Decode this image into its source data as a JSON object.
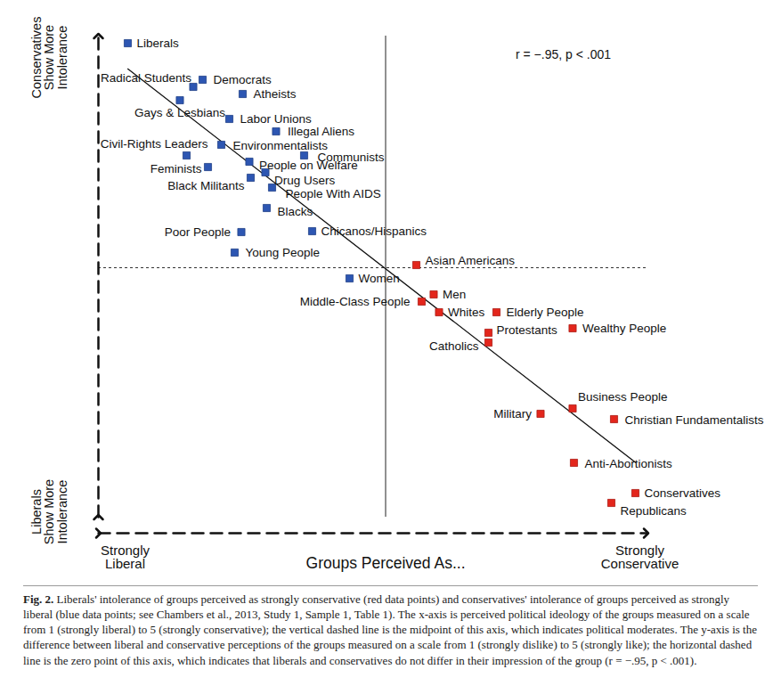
{
  "chart_data": {
    "type": "scatter",
    "x_label": "Groups Perceived As...",
    "x_label_left": "Strongly Liberal",
    "x_label_right": "Strongly Conservative",
    "y_label_top": "Conservatives Show More Intolerance",
    "y_label_bottom": "Liberals Show More Intolerance",
    "annotation": "r = −.95, p < .001",
    "caption_label": "Fig. 2.",
    "caption": "Liberals' intolerance of groups perceived as strongly conservative (red data points) and conservatives' intolerance of groups perceived as strongly liberal (blue data points; see Chambers et al., 2013, Study 1, Sample 1, Table 1). The x-axis is perceived political ideology of the groups measured on a scale from 1 (strongly liberal) to 5 (strongly conservative); the vertical dashed line is the midpoint of this axis, which indicates political moderates. The y-axis is the difference between liberal and conservative perceptions of the groups measured on a scale from 1 (strongly dislike) to 5 (strongly like); the horizontal dashed line is the zero point of this axis, which indicates that liberals and conservatives do not differ in their impression of the group (r = −.95, p < .001).",
    "xlim": [
      0.85,
      4.95
    ],
    "ylim": [
      -2.8,
      2.6
    ],
    "tick_labels": false,
    "grid": false,
    "vline": 3,
    "hline": 0,
    "marker": "square",
    "series": [
      {
        "color": "#2d56b2",
        "labels": [
          "Liberals",
          "Radical Students",
          "Democrats",
          "Atheists",
          "Gays & Lesbians",
          "Labor Unions",
          "Illegal Aliens",
          "Civil-Rights Leaders",
          "Environmentalists",
          "Communists",
          "People on Welfare",
          "Feminists",
          "Drug Users",
          "Black Militants",
          "People With AIDS",
          "Blacks",
          "Poor People",
          "Chicanos/Hispanics",
          "Young People",
          "Women"
        ],
        "x": [
          1.07,
          1.56,
          1.63,
          1.93,
          1.46,
          1.83,
          2.18,
          1.51,
          1.77,
          2.39,
          1.98,
          1.67,
          2.1,
          1.99,
          2.15,
          2.11,
          1.92,
          2.45,
          1.87,
          2.73
        ],
        "values": [
          2.52,
          2.03,
          2.11,
          1.95,
          1.88,
          1.67,
          1.53,
          1.26,
          1.38,
          1.26,
          1.19,
          1.13,
          1.07,
          1.01,
          0.9,
          0.67,
          0.4,
          0.41,
          0.17,
          -0.12
        ]
      },
      {
        "color": "#e3261c",
        "labels": [
          "Asian Americans",
          "Men",
          "Middle-Class People",
          "Whites",
          "Elderly People",
          "Protestants",
          "Wealthy People",
          "Catholics",
          "Business People",
          "Military",
          "Christian Fundamentalists",
          "Anti-Abortionists",
          "Conservatives",
          "Republicans"
        ],
        "x": [
          3.23,
          3.36,
          3.27,
          3.4,
          3.83,
          3.77,
          4.4,
          3.77,
          4.4,
          4.16,
          4.71,
          4.41,
          4.87,
          4.69
        ],
        "values": [
          0.03,
          -0.3,
          -0.38,
          -0.5,
          -0.5,
          -0.73,
          -0.68,
          -0.84,
          -1.58,
          -1.64,
          -1.7,
          -2.19,
          -2.53,
          -2.64
        ]
      }
    ]
  }
}
